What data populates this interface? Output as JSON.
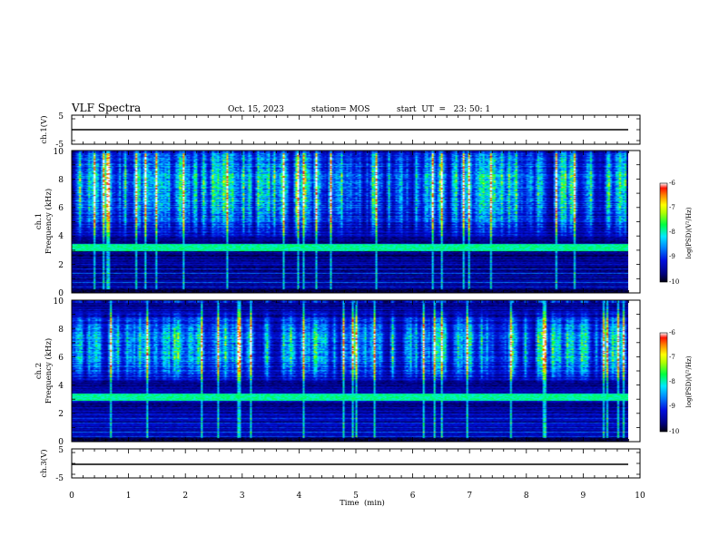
{
  "header": {
    "title": "VLF Spectra",
    "date": "Oct. 15, 2023",
    "station": "station= MOS",
    "start_ut": "start  UT  =   23: 50: 1"
  },
  "chart_data": [
    {
      "type": "line",
      "panel": "ch1-waveform",
      "ylabel": "ch.1(V)",
      "ylim": [
        -5,
        5
      ],
      "ytick_labels": [
        "5",
        "-5"
      ],
      "xlim": [
        0,
        10
      ],
      "series": [
        {
          "x": [
            0,
            9.8
          ],
          "y": [
            0,
            0
          ]
        }
      ],
      "color": "#000000"
    },
    {
      "type": "heatmap",
      "panel": "ch1-spectrogram",
      "ylabel_top": "ch.1",
      "ylabel": "Frequency (kHz)",
      "ylim": [
        0,
        10
      ],
      "ytick_labels": [
        "0",
        "2",
        "4",
        "6",
        "8",
        "10"
      ],
      "xlim": [
        0,
        10
      ],
      "data_xmax": 9.8,
      "colorbar": {
        "label": "log(PSD)(V²/Hz)",
        "range": [
          -10,
          -6
        ],
        "tick_labels": [
          "-6",
          "-7",
          "-8",
          "-9",
          "-10"
        ]
      },
      "features": {
        "hum_band_khz": [
          2.9,
          3.4
        ],
        "burst_band_khz": [
          5.0,
          9.8
        ],
        "background_log_psd": -9.6,
        "burst_peak_log_psd": -6.4
      }
    },
    {
      "type": "heatmap",
      "panel": "ch2-spectrogram",
      "ylabel_top": "ch.2",
      "ylabel": "Frequency (kHz)",
      "ylim": [
        0,
        10
      ],
      "ytick_labels": [
        "0",
        "2",
        "4",
        "6",
        "8",
        "10"
      ],
      "xlim": [
        0,
        10
      ],
      "data_xmax": 9.8,
      "colorbar": {
        "label": "log(PSD)(V²/Hz)",
        "range": [
          -10,
          -6
        ],
        "tick_labels": [
          "-6",
          "-7",
          "-8",
          "-9",
          "-10"
        ]
      },
      "features": {
        "hum_band_khz": [
          2.9,
          3.4
        ],
        "burst_band_khz": [
          5.5,
          8.0
        ],
        "background_log_psd": -9.5,
        "burst_peak_log_psd": -6.6
      }
    },
    {
      "type": "line",
      "panel": "ch3-waveform",
      "ylabel": "ch.3(V)",
      "ylim": [
        -5,
        5
      ],
      "ytick_labels": [
        "5",
        "-5"
      ],
      "xlim": [
        0,
        10
      ],
      "series": [
        {
          "x": [
            0,
            9.8
          ],
          "y": [
            0,
            0
          ]
        }
      ],
      "color": "#000000"
    }
  ],
  "x_axis": {
    "label": "Time  (min)",
    "range": [
      0,
      10
    ],
    "tick_labels": [
      "0",
      "1",
      "2",
      "3",
      "4",
      "5",
      "6",
      "7",
      "8",
      "9",
      "10"
    ]
  }
}
